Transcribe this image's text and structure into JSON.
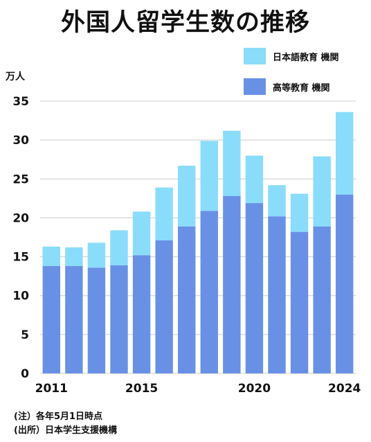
{
  "title": "外国人留学生数の推移",
  "unit": "万人",
  "notes": [
    "(注）各年5月1日時点",
    "(出所）日本学生支援機構"
  ],
  "colors": {
    "japanese_school": "#8adcfb",
    "higher_ed": "#6891e6",
    "grid": "#cccccc"
  },
  "chart_data": {
    "type": "bar",
    "stacked": true,
    "categories": [
      "2011",
      "2012",
      "2013",
      "2014",
      "2015",
      "2016",
      "2017",
      "2018",
      "2019",
      "2020",
      "2021",
      "2022",
      "2023",
      "2024"
    ],
    "x_tick_labels": [
      "2011",
      "2015",
      "2020",
      "2024"
    ],
    "x_tick_categories": [
      "2011",
      "2015",
      "2020",
      "2024"
    ],
    "series": [
      {
        "name": "高等教育 機関",
        "color": "#6891e6",
        "values": [
          13.8,
          13.8,
          13.6,
          13.9,
          15.2,
          17.1,
          18.9,
          20.9,
          22.8,
          21.9,
          20.2,
          18.2,
          18.9,
          23.0
        ]
      },
      {
        "name": "日本語教育 機関",
        "color": "#8adcfb",
        "values": [
          2.5,
          2.4,
          3.2,
          4.5,
          5.6,
          6.8,
          7.8,
          9.0,
          8.4,
          6.1,
          4.0,
          4.9,
          9.0,
          10.6
        ]
      }
    ],
    "legend_order": [
      "日本語教育 機関",
      "高等教育 機関"
    ],
    "ylim": [
      0,
      35
    ],
    "yticks": [
      0,
      5,
      10,
      15,
      20,
      25,
      30,
      35
    ],
    "grid": true,
    "legend_position": "top-right"
  }
}
